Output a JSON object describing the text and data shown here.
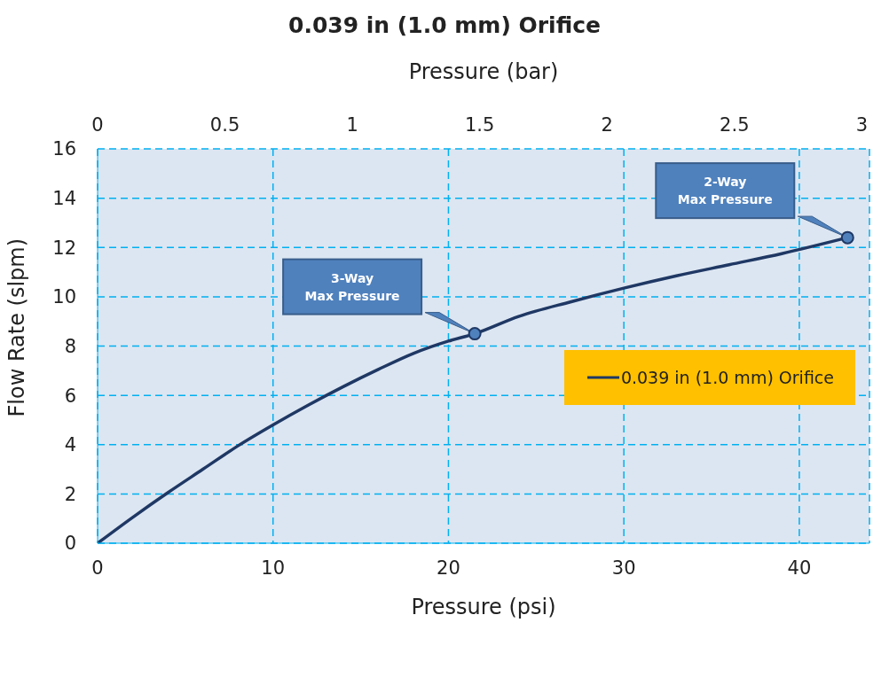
{
  "chart_data": {
    "type": "line",
    "title": "0.039 in (1.0 mm) Orifice",
    "xlabel": "Pressure (psi)",
    "ylabel": "Flow Rate (slpm)",
    "x2label": "Pressure (bar)",
    "x": [
      0,
      2,
      4,
      6,
      8,
      10,
      12,
      14,
      16,
      18,
      20,
      21.5,
      24,
      27,
      30,
      33,
      36,
      39,
      42.75
    ],
    "series": [
      {
        "name": "0.039 in (1.0 mm) Orifice",
        "color": "#1f3864",
        "values": [
          0,
          1.05,
          2.05,
          3.0,
          3.95,
          4.8,
          5.6,
          6.35,
          7.05,
          7.7,
          8.2,
          8.5,
          9.2,
          9.8,
          10.35,
          10.85,
          11.3,
          11.75,
          12.4
        ]
      },
      {
        "type": "scatter",
        "marker": "circle",
        "color": "#4f81bd",
        "x": [
          21.5,
          42.75
        ],
        "values": [
          8.5,
          12.4
        ]
      }
    ],
    "xlim": [
      0,
      44
    ],
    "xticks": [
      0,
      10,
      20,
      30,
      40
    ],
    "x2lim": [
      0,
      3.03
    ],
    "x2ticks": [
      0,
      0.5,
      1,
      1.5,
      2,
      2.5,
      3
    ],
    "ylim": [
      0,
      16
    ],
    "yticks": [
      0,
      2,
      4,
      6,
      8,
      10,
      12,
      14,
      16
    ],
    "annotations": [
      "3-Way\nMax Pressure",
      "2-Way\nMax Pressure"
    ],
    "grid": true,
    "legend": "right",
    "marker": "none",
    "line_style": "solid"
  }
}
